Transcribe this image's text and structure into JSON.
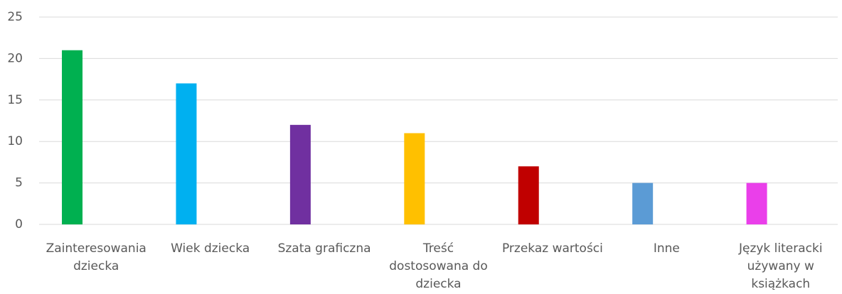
{
  "chart_data": {
    "type": "bar",
    "categories": [
      "Zainteresowania\ndziecka",
      "Wiek dziecka",
      "Szata graficzna",
      "Treść\ndostosowana do\ndziecka",
      "Przekaz wartości",
      "Inne",
      "Język literacki\nużywany w\nksiążkach"
    ],
    "values": [
      21,
      17,
      12,
      11,
      7,
      5,
      5
    ],
    "colors": [
      "#00b050",
      "#00b0f0",
      "#7030a0",
      "#ffc000",
      "#c00000",
      "#5b9bd5",
      "#ea3fea"
    ],
    "ylim": [
      0,
      25
    ],
    "yticks": [
      0,
      5,
      10,
      15,
      20,
      25
    ],
    "grid": true
  }
}
